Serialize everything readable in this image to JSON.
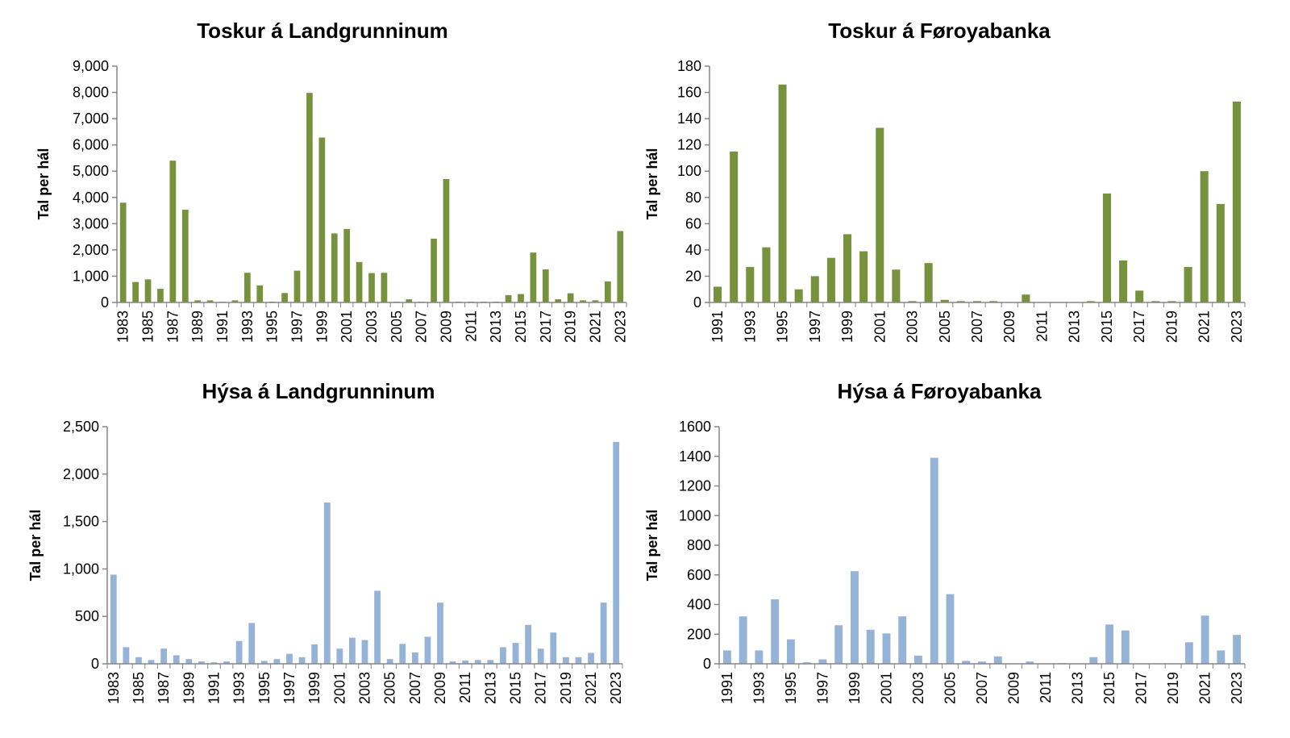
{
  "chart_data": [
    {
      "type": "bar",
      "title": "Toskur á Landgrunninum",
      "xlabel": "",
      "ylabel": "Tal per hál",
      "color": "#76923C",
      "ylim": [
        0,
        9000
      ],
      "yticks": [
        0,
        1000,
        2000,
        3000,
        4000,
        5000,
        6000,
        7000,
        8000,
        9000
      ],
      "ytick_labels": [
        "0",
        "1,000",
        "2,000",
        "3,000",
        "4,000",
        "5,000",
        "6,000",
        "7,000",
        "8,000",
        "9,000"
      ],
      "xtick_labels": [
        "1983",
        "1985",
        "1987",
        "1989",
        "1991",
        "1993",
        "1995",
        "1997",
        "1999",
        "2001",
        "2003",
        "2005",
        "2007",
        "2009",
        "2011",
        "2013",
        "2015",
        "2017",
        "2019",
        "2021",
        "2023"
      ],
      "categories": [
        1983,
        1984,
        1985,
        1986,
        1987,
        1988,
        1989,
        1990,
        1991,
        1992,
        1993,
        1994,
        1995,
        1996,
        1997,
        1998,
        1999,
        2000,
        2001,
        2002,
        2003,
        2004,
        2005,
        2006,
        2007,
        2008,
        2009,
        2010,
        2011,
        2012,
        2013,
        2014,
        2015,
        2016,
        2017,
        2018,
        2019,
        2020,
        2021,
        2022,
        2023
      ],
      "values": [
        3800,
        780,
        880,
        520,
        5400,
        3530,
        80,
        80,
        30,
        80,
        1130,
        650,
        30,
        360,
        1210,
        7980,
        6280,
        2630,
        2800,
        1540,
        1120,
        1130,
        30,
        120,
        30,
        2430,
        4700,
        30,
        30,
        30,
        30,
        280,
        320,
        1900,
        1260,
        120,
        350,
        80,
        80,
        800,
        2720
      ]
    },
    {
      "type": "bar",
      "title": "Toskur á Føroyabanka",
      "xlabel": "",
      "ylabel": "Tal per hál",
      "color": "#76923C",
      "ylim": [
        0,
        180
      ],
      "yticks": [
        0,
        20,
        40,
        60,
        80,
        100,
        120,
        140,
        160,
        180
      ],
      "ytick_labels": [
        "0",
        "20",
        "40",
        "60",
        "80",
        "100",
        "120",
        "140",
        "160",
        "180"
      ],
      "xtick_labels": [
        "1991",
        "1993",
        "1995",
        "1997",
        "1999",
        "2001",
        "2003",
        "2005",
        "2007",
        "2009",
        "2011",
        "2013",
        "2015",
        "2017",
        "2019",
        "2021",
        "2023"
      ],
      "categories": [
        1991,
        1992,
        1993,
        1994,
        1995,
        1996,
        1997,
        1998,
        1999,
        2000,
        2001,
        2002,
        2003,
        2004,
        2005,
        2006,
        2007,
        2008,
        2009,
        2010,
        2011,
        2012,
        2013,
        2014,
        2015,
        2016,
        2017,
        2018,
        2019,
        2020,
        2021,
        2022,
        2023
      ],
      "values": [
        12,
        115,
        27,
        42,
        166,
        10,
        20,
        34,
        52,
        39,
        133,
        25,
        1,
        30,
        2,
        1,
        1,
        1,
        0,
        6,
        0,
        0,
        0,
        1,
        83,
        32,
        9,
        1,
        1,
        27,
        100,
        75,
        153
      ]
    },
    {
      "type": "bar",
      "title": "Hýsa á Landgrunninum",
      "xlabel": "",
      "ylabel": "Tal per hál",
      "color": "#95B3D7",
      "ylim": [
        0,
        2500
      ],
      "yticks": [
        0,
        500,
        1000,
        1500,
        2000,
        2500
      ],
      "ytick_labels": [
        "0",
        "500",
        "1,000",
        "1,500",
        "2,000",
        "2,500"
      ],
      "xtick_labels": [
        "1983",
        "1985",
        "1987",
        "1989",
        "1991",
        "1993",
        "1995",
        "1997",
        "1999",
        "2001",
        "2003",
        "2005",
        "2007",
        "2009",
        "2011",
        "2013",
        "2015",
        "2017",
        "2019",
        "2021",
        "2023"
      ],
      "categories": [
        1983,
        1984,
        1985,
        1986,
        1987,
        1988,
        1989,
        1990,
        1991,
        1992,
        1993,
        1994,
        1995,
        1996,
        1997,
        1998,
        1999,
        2000,
        2001,
        2002,
        2003,
        2004,
        2005,
        2006,
        2007,
        2008,
        2009,
        2010,
        2011,
        2012,
        2013,
        2014,
        2015,
        2016,
        2017,
        2018,
        2019,
        2020,
        2021,
        2022,
        2023
      ],
      "values": [
        940,
        175,
        70,
        40,
        160,
        90,
        50,
        25,
        15,
        25,
        240,
        430,
        30,
        50,
        105,
        70,
        205,
        1700,
        160,
        275,
        250,
        770,
        50,
        210,
        120,
        285,
        645,
        25,
        35,
        40,
        40,
        175,
        220,
        410,
        160,
        330,
        70,
        70,
        115,
        645,
        2340
      ]
    },
    {
      "type": "bar",
      "title": "Hýsa á Føroyabanka",
      "xlabel": "",
      "ylabel": "Tal per hál",
      "color": "#95B3D7",
      "ylim": [
        0,
        1600
      ],
      "yticks": [
        0,
        200,
        400,
        600,
        800,
        1000,
        1200,
        1400,
        1600
      ],
      "ytick_labels": [
        "0",
        "200",
        "400",
        "600",
        "800",
        "1000",
        "1200",
        "1400",
        "1600"
      ],
      "xtick_labels": [
        "1991",
        "1993",
        "1995",
        "1997",
        "1999",
        "2001",
        "2003",
        "2005",
        "2007",
        "2009",
        "2011",
        "2013",
        "2015",
        "2017",
        "2019",
        "2021",
        "2023"
      ],
      "categories": [
        1991,
        1992,
        1993,
        1994,
        1995,
        1996,
        1997,
        1998,
        1999,
        2000,
        2001,
        2002,
        2003,
        2004,
        2005,
        2006,
        2007,
        2008,
        2009,
        2010,
        2011,
        2012,
        2013,
        2014,
        2015,
        2016,
        2017,
        2018,
        2019,
        2020,
        2021,
        2022,
        2023
      ],
      "values": [
        90,
        320,
        90,
        435,
        165,
        10,
        30,
        260,
        625,
        230,
        205,
        320,
        55,
        1390,
        470,
        20,
        15,
        50,
        0,
        15,
        0,
        5,
        0,
        45,
        265,
        225,
        0,
        0,
        0,
        145,
        325,
        90,
        195
      ]
    }
  ]
}
